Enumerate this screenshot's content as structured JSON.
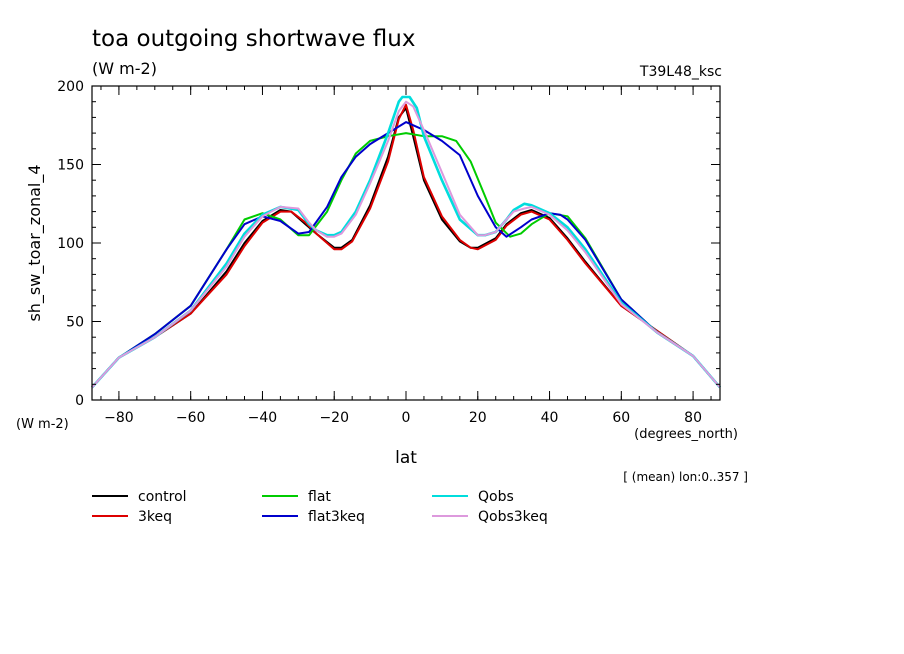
{
  "chart_data": {
    "type": "line",
    "title": "toa outgoing shortwave flux",
    "units_label": "(W m-2)",
    "model_label": "T39L48_ksc",
    "ylabel": "sh_sw_toar_zonal_4",
    "y_units_label": "(W m-2)",
    "xlabel": "lat",
    "x_units_label": "(degrees_north)",
    "footnote": "[ (mean) lon:0..357 ]",
    "xlim": [
      -87.5,
      87.5
    ],
    "ylim": [
      0,
      200
    ],
    "xticks": [
      -80,
      -60,
      -40,
      -20,
      0,
      20,
      40,
      60,
      80
    ],
    "xtick_labels": [
      "-80",
      "-60",
      "-40",
      "-20",
      "0",
      "20",
      "40",
      "60",
      "80"
    ],
    "yticks": [
      0,
      50,
      100,
      150,
      200
    ],
    "ytick_labels": [
      "0",
      "50",
      "100",
      "150",
      "200"
    ],
    "series": [
      {
        "name": "control",
        "color": "#000000",
        "x": [
          -87.5,
          -80,
          -70,
          -60,
          -50,
          -45,
          -40,
          -35,
          -32,
          -28,
          -25,
          -20,
          -18,
          -15,
          -10,
          -5,
          -2,
          0,
          2,
          5,
          10,
          15,
          18,
          20,
          25,
          28,
          32,
          35,
          40,
          45,
          50,
          60,
          70,
          80,
          87.5
        ],
        "y": [
          8,
          27,
          40,
          55,
          82,
          100,
          114,
          121,
          120,
          112,
          106,
          97,
          97,
          102,
          124,
          155,
          180,
          186,
          168,
          140,
          115,
          101,
          97,
          97,
          103,
          112,
          119,
          121,
          116,
          103,
          88,
          60,
          44,
          28,
          8
        ]
      },
      {
        "name": "3keq",
        "color": "#dd0000",
        "x": [
          -87.5,
          -80,
          -70,
          -60,
          -50,
          -45,
          -40,
          -35,
          -32,
          -28,
          -25,
          -20,
          -18,
          -15,
          -10,
          -5,
          -2,
          0,
          2,
          5,
          10,
          15,
          18,
          20,
          25,
          28,
          32,
          35,
          40,
          45,
          50,
          60,
          70,
          80,
          87.5
        ],
        "y": [
          8,
          27,
          40,
          55,
          80,
          98,
          113,
          120,
          120,
          113,
          106,
          96,
          96,
          101,
          122,
          152,
          179,
          188,
          172,
          142,
          117,
          102,
          97,
          96,
          102,
          111,
          118,
          120,
          115,
          102,
          87,
          60,
          44,
          28,
          8
        ]
      },
      {
        "name": "flat",
        "color": "#00cc00",
        "x": [
          -87.5,
          -80,
          -70,
          -60,
          -50,
          -45,
          -40,
          -35,
          -30,
          -27,
          -22,
          -18,
          -14,
          -10,
          -5,
          0,
          5,
          10,
          14,
          18,
          22,
          25,
          29,
          32,
          35,
          40,
          45,
          50,
          60,
          70,
          80,
          87.5
        ],
        "y": [
          8,
          27,
          42,
          60,
          96,
          115,
          119,
          115,
          105,
          105,
          120,
          140,
          157,
          165,
          168,
          170,
          168,
          168,
          165,
          152,
          130,
          113,
          104,
          106,
          112,
          119,
          117,
          103,
          64,
          43,
          28,
          8
        ]
      },
      {
        "name": "flat3keq",
        "color": "#0000cc",
        "x": [
          -87.5,
          -80,
          -70,
          -60,
          -50,
          -45,
          -40,
          -35,
          -30,
          -27,
          -22,
          -18,
          -14,
          -10,
          -5,
          0,
          5,
          10,
          15,
          20,
          25,
          28,
          32,
          35,
          40,
          43,
          45,
          50,
          60,
          70,
          80,
          87.5
        ],
        "y": [
          8,
          27,
          42,
          60,
          96,
          112,
          117,
          114,
          106,
          107,
          123,
          142,
          155,
          163,
          170,
          177,
          172,
          165,
          156,
          130,
          110,
          104,
          110,
          115,
          119,
          118,
          115,
          102,
          64,
          43,
          28,
          8
        ]
      },
      {
        "name": "Qobs",
        "color": "#00dddd",
        "x": [
          -87.5,
          -80,
          -70,
          -60,
          -50,
          -45,
          -40,
          -35,
          -30,
          -27,
          -25,
          -22,
          -20,
          -18,
          -14,
          -10,
          -5,
          -2,
          -1,
          1,
          3,
          5,
          10,
          15,
          20,
          22,
          25,
          28,
          30,
          33,
          35,
          40,
          45,
          50,
          60,
          70,
          80,
          87.5
        ],
        "y": [
          8,
          27,
          40,
          57,
          87,
          106,
          118,
          123,
          121,
          112,
          108,
          105,
          105,
          107,
          120,
          140,
          170,
          190,
          193,
          193,
          186,
          168,
          140,
          115,
          105,
          105,
          107,
          115,
          121,
          125,
          124,
          119,
          110,
          96,
          62,
          43,
          28,
          8
        ]
      },
      {
        "name": "Qobs3keq",
        "color": "#dd99dd",
        "x": [
          -87.5,
          -80,
          -70,
          -60,
          -50,
          -45,
          -40,
          -35,
          -30,
          -27,
          -25,
          -22,
          -20,
          -18,
          -14,
          -10,
          -5,
          -2,
          0,
          2,
          5,
          10,
          15,
          20,
          22,
          25,
          28,
          30,
          33,
          35,
          40,
          45,
          50,
          60,
          70,
          80,
          87.5
        ],
        "y": [
          8,
          27,
          40,
          57,
          85,
          104,
          117,
          123,
          122,
          113,
          108,
          104,
          104,
          106,
          118,
          138,
          165,
          184,
          190,
          187,
          172,
          145,
          118,
          105,
          105,
          107,
          115,
          120,
          122,
          123,
          118,
          108,
          94,
          61,
          43,
          28,
          8
        ]
      }
    ]
  }
}
